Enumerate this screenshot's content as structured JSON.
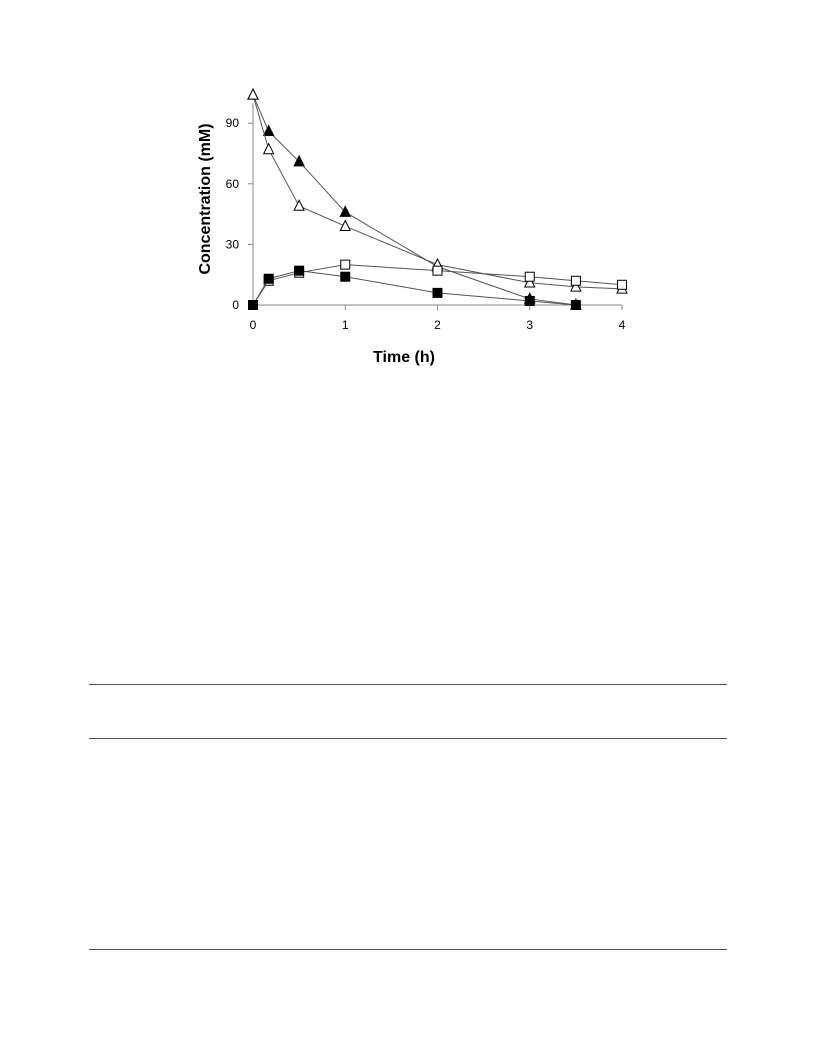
{
  "chart_data": {
    "type": "line",
    "xlabel": "Time (h)",
    "ylabel": "Concentration (mM)",
    "xlim": [
      0,
      4
    ],
    "ylim": [
      0,
      100
    ],
    "xticks": [
      0,
      1,
      2,
      3,
      4
    ],
    "yticks": [
      0,
      30,
      60,
      90
    ],
    "grid": false,
    "legend": "none",
    "series": [
      {
        "marker": "filled-triangle",
        "color": "#000000",
        "x": [
          0,
          0.17,
          0.5,
          1,
          2,
          3,
          3.5
        ],
        "y": [
          104,
          86,
          71,
          46,
          19,
          3,
          0
        ]
      },
      {
        "marker": "open-triangle",
        "color": "#000000",
        "x": [
          0,
          0.17,
          0.5,
          1,
          2,
          3,
          3.5,
          4
        ],
        "y": [
          104,
          77,
          49,
          39,
          20,
          11,
          9,
          8
        ]
      },
      {
        "marker": "open-square",
        "color": "#000000",
        "x": [
          0,
          0.17,
          0.5,
          1,
          2,
          3,
          3.5,
          4
        ],
        "y": [
          0,
          12,
          16,
          20,
          17,
          14,
          12,
          10
        ]
      },
      {
        "marker": "filled-square",
        "color": "#000000",
        "x": [
          0,
          0.17,
          0.5,
          1,
          2,
          3,
          3.5
        ],
        "y": [
          0,
          13,
          17,
          14,
          6,
          2,
          0
        ]
      }
    ]
  }
}
